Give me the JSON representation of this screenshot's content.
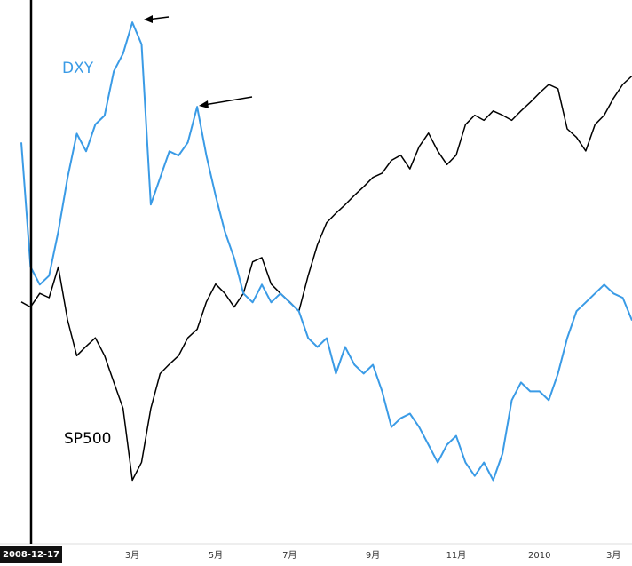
{
  "chart_data": {
    "type": "line",
    "crosshair_label": "2008-12-17",
    "categories": [
      null,
      null,
      null,
      null,
      null,
      null,
      null,
      null,
      null,
      null,
      null,
      null,
      "3月",
      null,
      null,
      null,
      null,
      null,
      null,
      null,
      null,
      "5月",
      null,
      null,
      null,
      null,
      null,
      null,
      null,
      "7月",
      null,
      null,
      null,
      null,
      null,
      null,
      null,
      null,
      "9月",
      null,
      null,
      null,
      null,
      null,
      null,
      null,
      null,
      "11月",
      null,
      null,
      null,
      null,
      null,
      null,
      null,
      null,
      "2010",
      null,
      null,
      null,
      null,
      null,
      null,
      null,
      "3月",
      null,
      null
    ],
    "ylim": [
      624,
      1249
    ],
    "y2lim": [
      73.3,
      89.54
    ],
    "series": [
      {
        "name": "SP500",
        "color": "#000000",
        "values": [
          895,
          889,
          905,
          900,
          936,
          874,
          832,
          843,
          853,
          832,
          801,
          770,
          686,
          707,
          770,
          811,
          822,
          832,
          853,
          863,
          895,
          916,
          905,
          889,
          905,
          942,
          947,
          916,
          905,
          895,
          884,
          926,
          962,
          988,
          999,
          1009,
          1020,
          1030,
          1041,
          1046,
          1061,
          1067,
          1051,
          1077,
          1093,
          1072,
          1056,
          1067,
          1103,
          1114,
          1108,
          1119,
          1114,
          1108,
          1119,
          1129,
          1140,
          1150,
          1145,
          1098,
          1088,
          1072,
          1103,
          1114,
          1134,
          1150,
          1160
        ]
      },
      {
        "name": "DXY",
        "color": "#3a9be6",
        "axis": "y2",
        "values": [
          85.2,
          81.41,
          80.87,
          81.14,
          82.49,
          84.12,
          85.47,
          84.93,
          85.75,
          86.02,
          87.37,
          87.91,
          88.86,
          88.19,
          83.31,
          84.12,
          84.93,
          84.8,
          85.2,
          86.29,
          84.8,
          83.58,
          82.49,
          81.68,
          80.6,
          80.33,
          80.87,
          80.33,
          80.6,
          80.33,
          80.06,
          79.24,
          78.97,
          79.24,
          78.16,
          78.97,
          78.43,
          78.16,
          78.43,
          77.62,
          76.53,
          76.8,
          76.94,
          76.53,
          75.99,
          75.45,
          75.99,
          76.26,
          75.45,
          75.04,
          75.45,
          74.91,
          75.72,
          77.35,
          77.89,
          77.62,
          77.62,
          77.35,
          78.16,
          79.24,
          80.06,
          80.33,
          80.6,
          80.87,
          80.6,
          80.47,
          79.78
        ]
      }
    ]
  }
}
